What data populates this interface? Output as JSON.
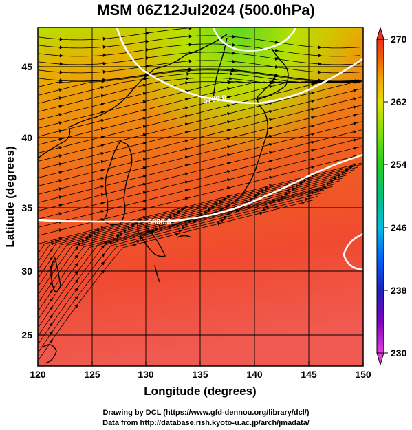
{
  "title": "MSM 06Z12Jul2024 (500.0hPa)",
  "x_axis": {
    "label": "Longitude (degrees)",
    "range": [
      120,
      150
    ],
    "ticks": [
      "120",
      "125",
      "130",
      "135",
      "140",
      "145",
      "150"
    ]
  },
  "y_axis": {
    "label": "Latitude  (degrees)",
    "range": [
      22.5,
      47.5
    ],
    "ticks": [
      "25",
      "30",
      "35",
      "40",
      "45"
    ]
  },
  "colorbar": {
    "range": [
      230,
      270
    ],
    "ticks": [
      "230",
      "238",
      "246",
      "254",
      "262",
      "270"
    ],
    "colors": [
      "#e040e0",
      "#8000c0",
      "#2020c0",
      "#0060ff",
      "#00c0e0",
      "#00c080",
      "#20d020",
      "#80e000",
      "#e0e000",
      "#f0a000",
      "#f06000",
      "#f03020"
    ]
  },
  "contours": {
    "color": "#ffffff",
    "labels": [
      "5700.0",
      "5800.0"
    ]
  },
  "credits": {
    "line1": "Drawing by DCL (https://www.gfd-dennou.org/library/dcl/)",
    "line2": "Data from http://database.rish.kyoto-u.ac.jp/arch/jmadata/"
  }
}
